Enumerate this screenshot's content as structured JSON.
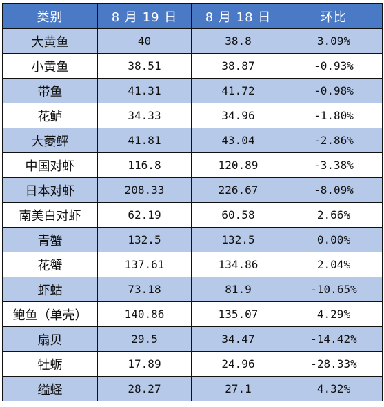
{
  "table": {
    "headers": [
      "类别",
      "8 月 19 日",
      "8 月 18 日",
      "环比"
    ],
    "rows": [
      [
        "大黄鱼",
        "40",
        "38.8",
        "3.09%"
      ],
      [
        "小黄鱼",
        "38.51",
        "38.87",
        "-0.93%"
      ],
      [
        "带鱼",
        "41.31",
        "41.72",
        "-0.98%"
      ],
      [
        "花鲈",
        "34.33",
        "34.96",
        "-1.80%"
      ],
      [
        "大菱鲆",
        "41.81",
        "43.04",
        "-2.86%"
      ],
      [
        "中国对虾",
        "116.8",
        "120.89",
        "-3.38%"
      ],
      [
        "日本对虾",
        "208.33",
        "226.67",
        "-8.09%"
      ],
      [
        "南美白对虾",
        "62.19",
        "60.58",
        "2.66%"
      ],
      [
        "青蟹",
        "132.5",
        "132.5",
        "0.00%"
      ],
      [
        "花蟹",
        "137.61",
        "134.86",
        "2.04%"
      ],
      [
        "虾蛄",
        "73.18",
        "81.9",
        "-10.65%"
      ],
      [
        "鲍鱼（单壳）",
        "140.86",
        "135.07",
        "4.29%"
      ],
      [
        "扇贝",
        "29.5",
        "34.47",
        "-14.42%"
      ],
      [
        "牡蛎",
        "17.89",
        "24.96",
        "-28.33%"
      ],
      [
        "缢蛏",
        "28.27",
        "27.1",
        "4.32%"
      ]
    ]
  },
  "colors": {
    "header_bg": "#4a79c5",
    "header_text": "#ffffff",
    "shaded_row_bg": "#b7c9e8",
    "plain_row_bg": "#ffffff",
    "border": "#111111"
  }
}
